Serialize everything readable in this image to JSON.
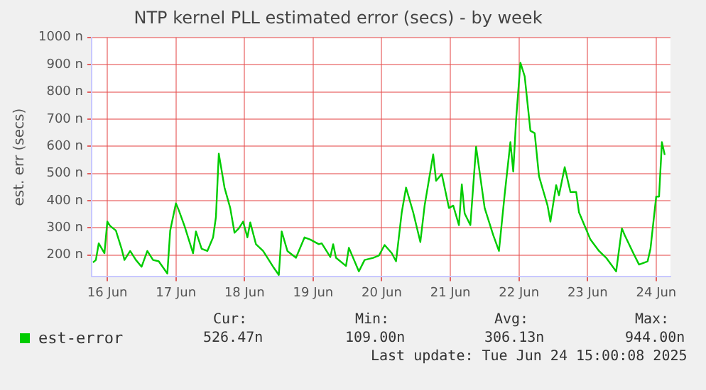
{
  "chart_data": {
    "type": "line",
    "title": "NTP kernel PLL estimated error (secs) - by week",
    "ylabel": "est. err (secs)",
    "x": [
      "2025-06-15T19:00",
      "2025-06-15T20:00",
      "2025-06-15T21:00",
      "2025-06-15T23:00",
      "2025-06-16T00:00",
      "2025-06-16T01:00",
      "2025-06-16T03:00",
      "2025-06-16T05:00",
      "2025-06-16T06:00",
      "2025-06-16T08:00",
      "2025-06-16T10:00",
      "2025-06-16T12:00",
      "2025-06-16T14:00",
      "2025-06-16T16:00",
      "2025-06-16T18:00",
      "2025-06-16T21:00",
      "2025-06-16T22:00",
      "2025-06-17T00:00",
      "2025-06-17T01:00",
      "2025-06-17T03:00",
      "2025-06-17T06:00",
      "2025-06-17T07:00",
      "2025-06-17T09:00",
      "2025-06-17T11:00",
      "2025-06-17T13:00",
      "2025-06-17T14:00",
      "2025-06-17T15:00",
      "2025-06-17T17:00",
      "2025-06-17T19:00",
      "2025-06-17T20:30",
      "2025-06-17T22:00",
      "2025-06-17T23:30",
      "2025-06-18T01:00",
      "2025-06-18T02:00",
      "2025-06-18T04:00",
      "2025-06-18T06:30",
      "2025-06-18T10:00",
      "2025-06-18T12:00",
      "2025-06-18T13:00",
      "2025-06-18T15:00",
      "2025-06-18T18:00",
      "2025-06-18T21:00",
      "2025-06-18T23:00",
      "2025-06-19T02:00",
      "2025-06-19T03:00",
      "2025-06-19T06:00",
      "2025-06-19T07:00",
      "2025-06-19T08:00",
      "2025-06-19T11:30",
      "2025-06-19T12:30",
      "2025-06-19T16:00",
      "2025-06-19T18:00",
      "2025-06-19T21:00",
      "2025-06-19T23:00",
      "2025-06-20T01:00",
      "2025-06-20T03:30",
      "2025-06-20T05:00",
      "2025-06-20T07:00",
      "2025-06-20T08:30",
      "2025-06-20T11:00",
      "2025-06-20T13:30",
      "2025-06-20T15:00",
      "2025-06-20T18:00",
      "2025-06-20T19:00",
      "2025-06-20T21:00",
      "2025-06-20T23:30",
      "2025-06-21T01:00",
      "2025-06-21T03:00",
      "2025-06-21T04:00",
      "2025-06-21T05:00",
      "2025-06-21T07:00",
      "2025-06-21T09:00",
      "2025-06-21T12:00",
      "2025-06-21T15:00",
      "2025-06-21T17:00",
      "2025-06-21T19:00",
      "2025-06-21T21:00",
      "2025-06-21T22:00",
      "2025-06-21T23:00",
      "2025-06-22T00:30",
      "2025-06-22T02:00",
      "2025-06-22T04:00",
      "2025-06-22T05:30",
      "2025-06-22T07:00",
      "2025-06-22T10:00",
      "2025-06-22T11:00",
      "2025-06-22T13:00",
      "2025-06-22T14:00",
      "2025-06-22T16:00",
      "2025-06-22T18:00",
      "2025-06-22T20:00",
      "2025-06-22T21:00",
      "2025-06-23T01:00",
      "2025-06-23T04:00",
      "2025-06-23T06:30",
      "2025-06-23T10:00",
      "2025-06-23T12:00",
      "2025-06-23T13:00",
      "2025-06-23T16:00",
      "2025-06-23T18:00",
      "2025-06-23T21:00",
      "2025-06-23T22:00",
      "2025-06-24T00:00",
      "2025-06-24T01:00",
      "2025-06-24T02:00",
      "2025-06-24T03:00"
    ],
    "series": [
      {
        "name": "est-error",
        "color": "#00cc00",
        "values": [
          173,
          182,
          243,
          207,
          323,
          307,
          290,
          223,
          182,
          215,
          182,
          157,
          215,
          182,
          177,
          132,
          290,
          390,
          365,
          307,
          207,
          287,
          223,
          215,
          265,
          340,
          573,
          448,
          373,
          282,
          298,
          323,
          265,
          320,
          240,
          215,
          157,
          127,
          287,
          215,
          190,
          265,
          257,
          240,
          243,
          193,
          240,
          190,
          160,
          227,
          140,
          182,
          190,
          198,
          237,
          207,
          177,
          357,
          448,
          357,
          248,
          382,
          570,
          473,
          498,
          373,
          382,
          310,
          460,
          353,
          310,
          598,
          373,
          273,
          215,
          423,
          615,
          507,
          698,
          907,
          857,
          657,
          648,
          490,
          382,
          323,
          457,
          420,
          523,
          432,
          432,
          357,
          257,
          215,
          190,
          140,
          298,
          273,
          207,
          165,
          177,
          223,
          415,
          415,
          615,
          568
        ]
      }
    ],
    "xlim": [
      "2025-06-15T18:30",
      "2025-06-24T05:00"
    ],
    "xticks": [
      {
        "value": "2025-06-16",
        "label": "16 Jun"
      },
      {
        "value": "2025-06-17",
        "label": "17 Jun"
      },
      {
        "value": "2025-06-18",
        "label": "18 Jun"
      },
      {
        "value": "2025-06-19",
        "label": "19 Jun"
      },
      {
        "value": "2025-06-20",
        "label": "20 Jun"
      },
      {
        "value": "2025-06-21",
        "label": "21 Jun"
      },
      {
        "value": "2025-06-22",
        "label": "22 Jun"
      },
      {
        "value": "2025-06-23",
        "label": "23 Jun"
      },
      {
        "value": "2025-06-24",
        "label": "24 Jun"
      }
    ],
    "ylim": [
      120,
      1000
    ],
    "yticks": [
      {
        "value": 200,
        "label": "200 n"
      },
      {
        "value": 300,
        "label": "300 n"
      },
      {
        "value": 400,
        "label": "400 n"
      },
      {
        "value": 500,
        "label": "500 n"
      },
      {
        "value": 600,
        "label": "600 n"
      },
      {
        "value": 700,
        "label": "700 n"
      },
      {
        "value": 800,
        "label": "800 n"
      },
      {
        "value": 900,
        "label": "900 n"
      },
      {
        "value": 1000,
        "label": "1000 n"
      }
    ],
    "grid": true,
    "legend": "bottom",
    "marker": "none",
    "line_style": "solid",
    "annotations": [
      "Cur:",
      "526.47n",
      "Min:",
      "109.00n",
      "Avg:",
      "306.13n",
      "Max:",
      "944.00n",
      "Last update: Tue Jun 24 15:00:08 2025"
    ]
  }
}
